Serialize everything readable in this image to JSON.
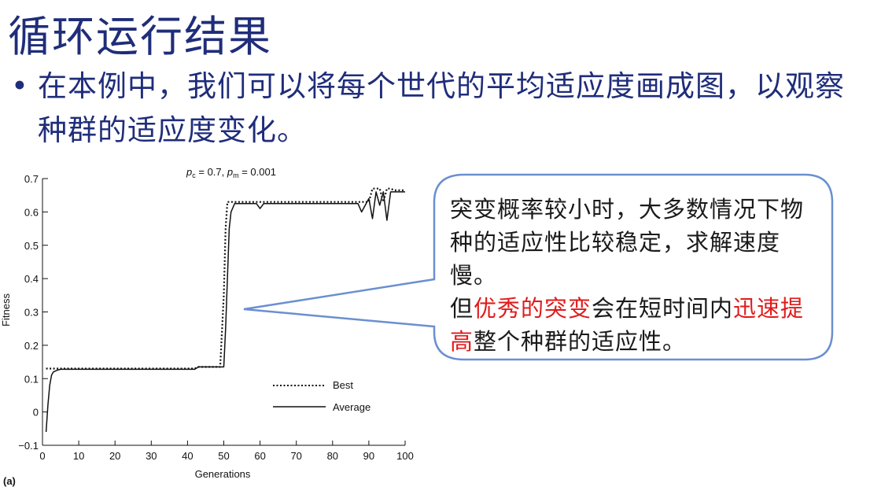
{
  "slide": {
    "title": "循环运行结果",
    "bullet": "在本例中，我们可以将每个世代的平均适应度画成图，以观察种群的适应度变化。"
  },
  "callout": {
    "line1": "突变概率较小时，大多数情况下物种的适应性比较稳定，求解速度慢。",
    "line2_a": "但",
    "line2_b": "优秀的突变",
    "line2_c": "会在短时间内",
    "line2_d": "迅速提高",
    "line2_e": "整个种群的适应性。"
  },
  "chart_data": {
    "type": "line",
    "title": "",
    "subtitle": "pc = 0.7, pm = 0.001",
    "xlabel": "Generations",
    "ylabel": "Fitness",
    "panel_label": "(a)",
    "xlim": [
      0,
      100
    ],
    "ylim": [
      -0.1,
      0.7
    ],
    "xticks": [
      0,
      10,
      20,
      30,
      40,
      50,
      60,
      70,
      80,
      90,
      100
    ],
    "yticks": [
      -0.1,
      0,
      0.1,
      0.2,
      0.3,
      0.4,
      0.5,
      0.6,
      0.7
    ],
    "ytick_labels": [
      "−0.1",
      "0",
      "0.1",
      "0.2",
      "0.3",
      "0.4",
      "0.5",
      "0.6",
      "0.7"
    ],
    "legend_position": "bottom-right",
    "series": [
      {
        "name": "Best",
        "style": "dotted",
        "x": [
          1,
          2,
          3,
          4,
          42,
          43,
          49,
          50,
          50.5,
          51,
          52,
          87,
          88,
          89,
          90,
          91,
          92,
          93,
          94,
          95,
          96,
          97,
          98,
          99,
          100
        ],
        "y": [
          0.13,
          0.13,
          0.13,
          0.13,
          0.13,
          0.135,
          0.135,
          0.35,
          0.55,
          0.63,
          0.63,
          0.63,
          0.63,
          0.63,
          0.63,
          0.67,
          0.67,
          0.67,
          0.63,
          0.67,
          0.67,
          0.665,
          0.665,
          0.665,
          0.665
        ]
      },
      {
        "name": "Average",
        "style": "solid",
        "x": [
          1,
          1.5,
          2,
          2.5,
          3,
          4,
          5,
          10,
          20,
          30,
          40,
          42,
          43,
          44,
          49,
          50,
          50.5,
          51,
          51.5,
          52,
          53,
          58,
          59,
          60,
          61,
          70,
          80,
          87,
          88,
          89,
          90,
          91,
          92,
          93,
          94,
          95,
          96,
          97,
          98,
          99,
          100
        ],
        "y": [
          -0.06,
          0.02,
          0.08,
          0.11,
          0.12,
          0.125,
          0.128,
          0.128,
          0.128,
          0.128,
          0.128,
          0.128,
          0.135,
          0.135,
          0.135,
          0.135,
          0.25,
          0.4,
          0.55,
          0.6,
          0.625,
          0.625,
          0.625,
          0.61,
          0.625,
          0.625,
          0.625,
          0.625,
          0.6,
          0.62,
          0.64,
          0.58,
          0.66,
          0.62,
          0.66,
          0.575,
          0.66,
          0.66,
          0.66,
          0.66,
          0.66
        ]
      }
    ]
  }
}
